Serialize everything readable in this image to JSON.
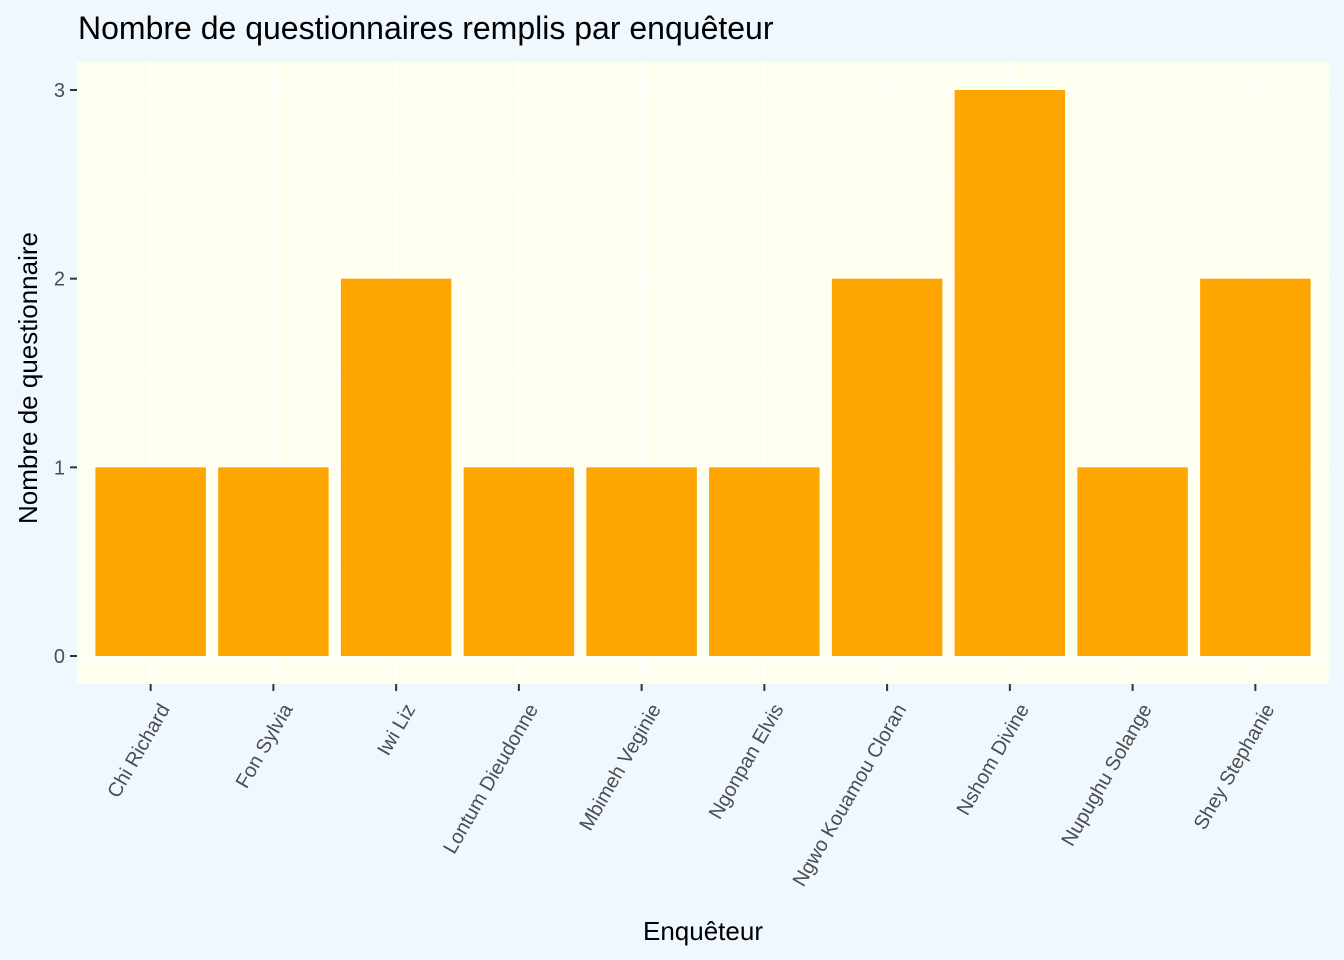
{
  "chart_data": {
    "type": "bar",
    "title": "Nombre de questionnaires remplis par enquêteur",
    "xlabel": "Enquêteur",
    "ylabel": "Nombre de questionnaire",
    "categories": [
      "Chi Richard",
      "Fon Sylvia",
      "Iwi Liz",
      "Lontum Dieudonne",
      "Mbimeh Veginie",
      "Ngonpan Elvis",
      "Ngwo Kouamou Cloran",
      "Nshom Divine",
      "Nupughu Solange",
      "Shey Stephanie"
    ],
    "values": [
      1,
      1,
      2,
      1,
      1,
      1,
      2,
      3,
      1,
      2
    ],
    "ylim": [
      0,
      3
    ],
    "yticks": [
      0,
      1,
      2,
      3
    ],
    "grid": true,
    "colors": {
      "bar": "#FFA500",
      "panel": "#FFFFF0",
      "background": "#F0F8FF",
      "grid": "#FFFFFF"
    }
  }
}
